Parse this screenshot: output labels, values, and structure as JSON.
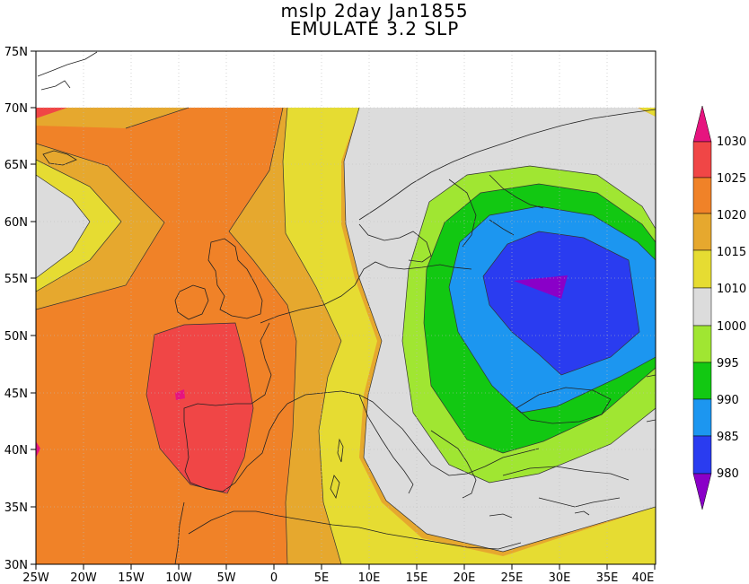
{
  "title": {
    "line1": "mslp 2day Jan1855",
    "line2": "EMULATE 3.2 SLP"
  },
  "map": {
    "lat_labels": [
      "75N",
      "70N",
      "65N",
      "60N",
      "55N",
      "50N",
      "45N",
      "40N",
      "35N",
      "30N"
    ],
    "lon_labels": [
      "25W",
      "20W",
      "15W",
      "10W",
      "5W",
      "0",
      "5E",
      "10E",
      "15E",
      "20E",
      "25E",
      "30E",
      "35E",
      "40E"
    ]
  },
  "colorbar": {
    "levels": [
      "980",
      "985",
      "990",
      "995",
      "1000",
      "1010",
      "1015",
      "1020",
      "1025",
      "1030"
    ],
    "colors": {
      "below_980": "#8a00c8",
      "980_985": "#2a3cf0",
      "985_990": "#1c96f0",
      "990_995": "#12c812",
      "995_1000": "#a0e632",
      "1000_1010": "#dcdcdc",
      "1010_1015": "#e6dc32",
      "1015_1020": "#e6a82e",
      "1020_1025": "#f08228",
      "1025_1030": "#f04646",
      "above_1030": "#e6147f"
    }
  }
}
